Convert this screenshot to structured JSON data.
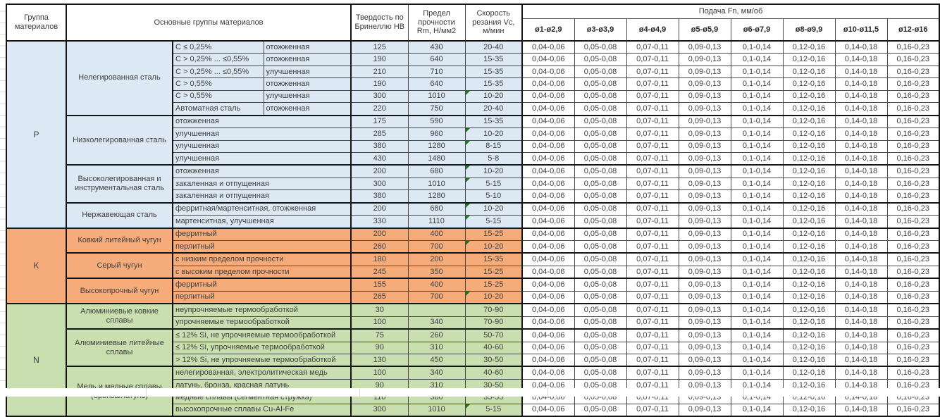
{
  "table": {
    "headers": {
      "group": "Группа материалов",
      "main": "Основные группы материалов",
      "hb": "Твердость по Бринеллю HB",
      "rm": "Предел прочности Rm, Н/мм2",
      "vc": "Скорость резания Vc, м/мин",
      "feed": "Подача Fn, мм/об"
    },
    "diameters": [
      "ø1-ø2,9",
      "ø3-ø3,9",
      "ø4-ø4,9",
      "ø5-ø5,9",
      "ø6-ø7,9",
      "ø8-ø9,9",
      "ø10-ø11,5",
      "ø12-ø16"
    ],
    "feed_values": [
      "0,04-0,06",
      "0,05-0,08",
      "0,07-0,11",
      "0,09-0,13",
      "0,1-0,14",
      "0,12-0,16",
      "0,14-0,18",
      "0,16-0,23"
    ],
    "note_color": "#1e7a1e",
    "sections": [
      {
        "group": "P",
        "color": "#dce8f4",
        "subgroups": [
          {
            "name": "Нелегированная сталь",
            "rows": [
              {
                "a": "C ≤ 0,25%",
                "b": "отожженная",
                "hb": "125",
                "rm": "430",
                "vc": "20-40",
                "note": false
              },
              {
                "a": "C > 0,25% ... ≤0,55%",
                "b": "отожженная",
                "hb": "190",
                "rm": "640",
                "vc": "15-35",
                "note": false
              },
              {
                "a": "C > 0,25% ... ≤0,55%",
                "b": "улучшенная",
                "hb": "210",
                "rm": "710",
                "vc": "15-35",
                "note": false
              },
              {
                "a": "C > 0,55%",
                "b": "отожженная",
                "hb": "190",
                "rm": "640",
                "vc": "15-35",
                "note": false
              },
              {
                "a": "C > 0,55%",
                "b": "улучшенная",
                "hb": "300",
                "rm": "1010",
                "vc": "10-20",
                "note": true
              },
              {
                "a": "Автоматная сталь",
                "b": "отожженная",
                "hb": "220",
                "rm": "750",
                "vc": "20-40",
                "note": false
              }
            ]
          },
          {
            "name": "Низколегированная сталь",
            "rows": [
              {
                "m": "отожженная",
                "hb": "175",
                "rm": "590",
                "vc": "15-35",
                "note": false
              },
              {
                "m": "улучшенная",
                "hb": "285",
                "rm": "960",
                "vc": "10-20",
                "note": true
              },
              {
                "m": "улучшенная",
                "hb": "380",
                "rm": "1280",
                "vc": "8-15",
                "note": true
              },
              {
                "m": "улучшенная",
                "hb": "430",
                "rm": "1480",
                "vc": "5-8",
                "note": false
              }
            ]
          },
          {
            "name": "Высоколегированная и инструментальная сталь",
            "rows": [
              {
                "m": "отожженная",
                "hb": "200",
                "rm": "680",
                "vc": "10-20",
                "note": true
              },
              {
                "m": "закаленная и отпущенная",
                "hb": "300",
                "rm": "1010",
                "vc": "5-15",
                "note": true
              },
              {
                "m": "закаленная и отпущенная",
                "hb": "380",
                "rm": "1280",
                "vc": "5-10",
                "note": false
              }
            ]
          },
          {
            "name": "Нержавеющая сталь",
            "rows": [
              {
                "m": "ферритная/мартенситная, отожженная",
                "hb": "200",
                "rm": "680",
                "vc": "10-20",
                "note": true
              },
              {
                "m": "мартенситная, улучшенная",
                "hb": "330",
                "rm": "1110",
                "vc": "5-15",
                "note": true
              }
            ]
          }
        ]
      },
      {
        "group": "K",
        "color": "#f6ac7a",
        "subgroups": [
          {
            "name": "Ковкий литейный чугун",
            "rows": [
              {
                "m": "ферритный",
                "hb": "200",
                "rm": "400",
                "vc": "15-25",
                "note": false
              },
              {
                "m": "перлитный",
                "hb": "260",
                "rm": "700",
                "vc": "10-20",
                "note": true
              }
            ]
          },
          {
            "name": "Серый чугун",
            "rows": [
              {
                "m": "с низким пределом прочности",
                "hb": "180",
                "rm": "200",
                "vc": "15-35",
                "note": false
              },
              {
                "m": "с высоким пределом прочности",
                "hb": "245",
                "rm": "350",
                "vc": "15-25",
                "note": false
              }
            ]
          },
          {
            "name": "Высокопрочный чугун",
            "rows": [
              {
                "m": "ферритный",
                "hb": "155",
                "rm": "400",
                "vc": "15-25",
                "note": false
              },
              {
                "m": "перлитный",
                "hb": "265",
                "rm": "700",
                "vc": "10-20",
                "note": true
              }
            ]
          }
        ]
      },
      {
        "group": "N",
        "color": "#c9dfb0",
        "subgroups": [
          {
            "name": "Алюминиевые ковкие сплавы",
            "rows": [
              {
                "m": "неупрочняемые термообработкой",
                "hb": "30",
                "rm": "",
                "vc": "70-90",
                "note": false
              },
              {
                "m": "упрочняемые термообработкой",
                "hb": "100",
                "rm": "340",
                "vc": "70-90",
                "note": false
              }
            ]
          },
          {
            "name": "Алюминиевые литейные сплавы",
            "rows": [
              {
                "m": "≤ 12% Si, не упрочняемые термообработкой",
                "hb": "75",
                "rm": "260",
                "vc": "50-70",
                "note": false
              },
              {
                "m": "≤ 12% Si, упрочняемые термообработкой",
                "hb": "90",
                "rm": "310",
                "vc": "40-60",
                "note": false
              },
              {
                "m": "> 12% Si, не упрочняемые термообработкой",
                "hb": "130",
                "rm": "450",
                "vc": "30-50",
                "note": false
              }
            ]
          },
          {
            "name": "Медь и медные сплавы (бронза/латунь)",
            "rows": [
              {
                "m": "нелегированная, электролитическая медь",
                "hb": "100",
                "rm": "340",
                "vc": "40-60",
                "note": false
              },
              {
                "m": "латунь, бронза, красная латунь",
                "hb": "90",
                "rm": "310",
                "vc": "30-50",
                "note": false
              },
              {
                "m": "медные сплавы (сегментная стружка)",
                "hb": "110",
                "rm": "380",
                "vc": "35-55",
                "note": false
              },
              {
                "m": "высокопрочные сплавы Cu-Al-Fe",
                "hb": "300",
                "rm": "1010",
                "vc": "5-15",
                "note": true
              }
            ]
          }
        ]
      }
    ]
  }
}
